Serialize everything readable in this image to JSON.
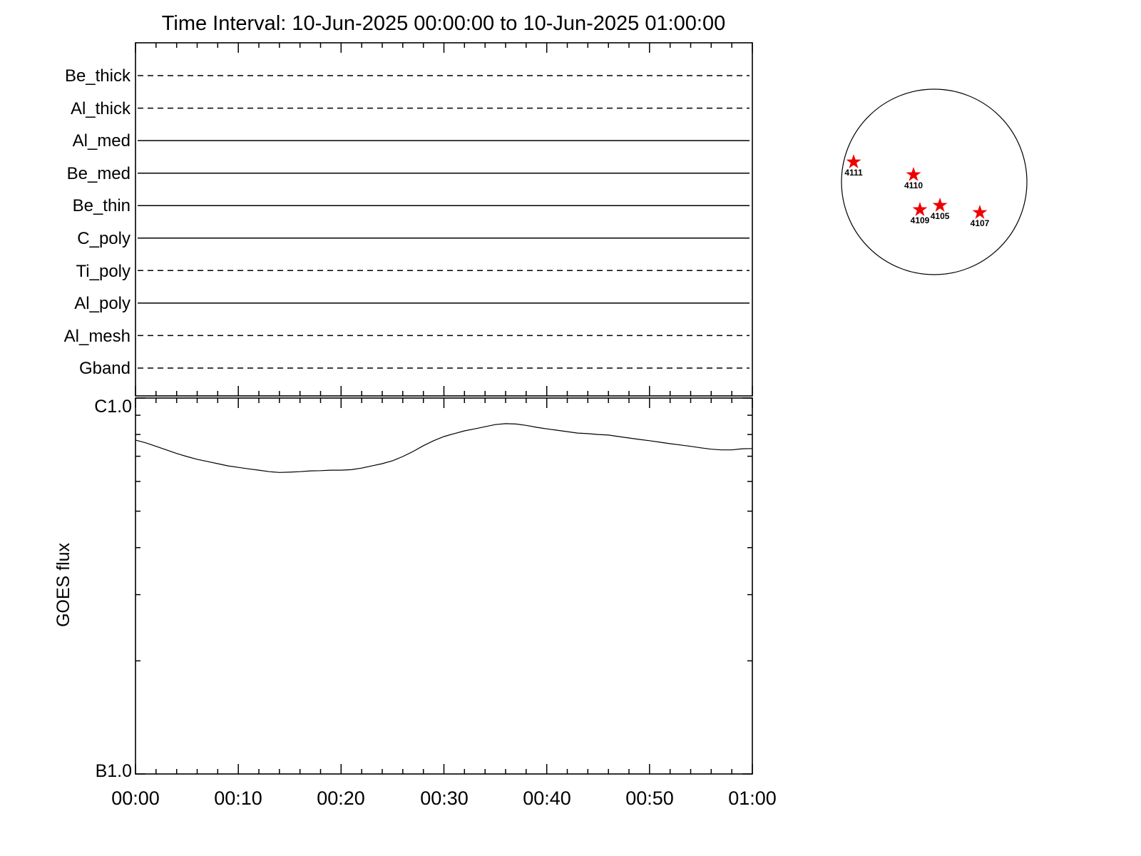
{
  "title": "Time Interval: 10-Jun-2025 00:00:00 to 10-Jun-2025 01:00:00",
  "colors": {
    "frame": "#000000",
    "marker": "#ee0000"
  },
  "chart_data": [
    {
      "type": "line",
      "panel": "xrt-filter-timeline",
      "x_range_minutes": [
        0,
        60
      ],
      "channels": [
        {
          "label": "Be_thick",
          "style": "dashed"
        },
        {
          "label": "Al_thick",
          "style": "dashed"
        },
        {
          "label": "Al_med",
          "style": "solid"
        },
        {
          "label": "Be_med",
          "style": "solid"
        },
        {
          "label": "Be_thin",
          "style": "solid"
        },
        {
          "label": "C_poly",
          "style": "solid"
        },
        {
          "label": "Ti_poly",
          "style": "dashed"
        },
        {
          "label": "Al_poly",
          "style": "solid"
        },
        {
          "label": "Al_mesh",
          "style": "dashed"
        },
        {
          "label": "Gband",
          "style": "dashed"
        }
      ]
    },
    {
      "type": "line",
      "panel": "goes-flux",
      "ylabel": "GOES flux",
      "y_top_label": "C1.0",
      "y_bottom_label": "B1.0",
      "y_scale": "log",
      "ylim": [
        1e-07,
        1e-06
      ],
      "x_tick_labels": [
        "00:00",
        "00:10",
        "00:20",
        "00:30",
        "00:40",
        "00:50",
        "01:00"
      ],
      "x_minutes": [
        0,
        1,
        2,
        3,
        4,
        5,
        6,
        7,
        8,
        9,
        10,
        11,
        12,
        13,
        14,
        15,
        16,
        17,
        18,
        19,
        20,
        21,
        22,
        23,
        24,
        25,
        26,
        27,
        28,
        29,
        30,
        31,
        32,
        33,
        34,
        35,
        36,
        37,
        38,
        39,
        40,
        41,
        42,
        43,
        44,
        45,
        46,
        47,
        48,
        49,
        50,
        51,
        52,
        53,
        54,
        55,
        56,
        57,
        58,
        59,
        60
      ],
      "flux_x1e7": [
        7.73,
        7.6,
        7.44,
        7.28,
        7.12,
        6.99,
        6.87,
        6.78,
        6.69,
        6.6,
        6.54,
        6.48,
        6.43,
        6.37,
        6.34,
        6.35,
        6.37,
        6.4,
        6.41,
        6.43,
        6.43,
        6.45,
        6.51,
        6.6,
        6.69,
        6.81,
        6.99,
        7.21,
        7.47,
        7.7,
        7.9,
        8.04,
        8.18,
        8.28,
        8.39,
        8.5,
        8.55,
        8.53,
        8.46,
        8.36,
        8.28,
        8.21,
        8.14,
        8.07,
        8.04,
        8.0,
        7.97,
        7.9,
        7.83,
        7.76,
        7.7,
        7.63,
        7.56,
        7.5,
        7.44,
        7.37,
        7.31,
        7.28,
        7.28,
        7.33,
        7.34
      ]
    },
    {
      "type": "scatter",
      "panel": "solar-disk-active-regions",
      "marker": "star",
      "marker_color": "#ee0000",
      "regions": [
        {
          "label": "4111",
          "x": -0.869,
          "y": -0.215
        },
        {
          "label": "4110",
          "x": -0.223,
          "y": -0.077
        },
        {
          "label": "4109",
          "x": -0.154,
          "y": 0.3
        },
        {
          "label": "4105",
          "x": 0.062,
          "y": 0.254
        },
        {
          "label": "4107",
          "x": 0.492,
          "y": 0.331
        }
      ]
    }
  ]
}
